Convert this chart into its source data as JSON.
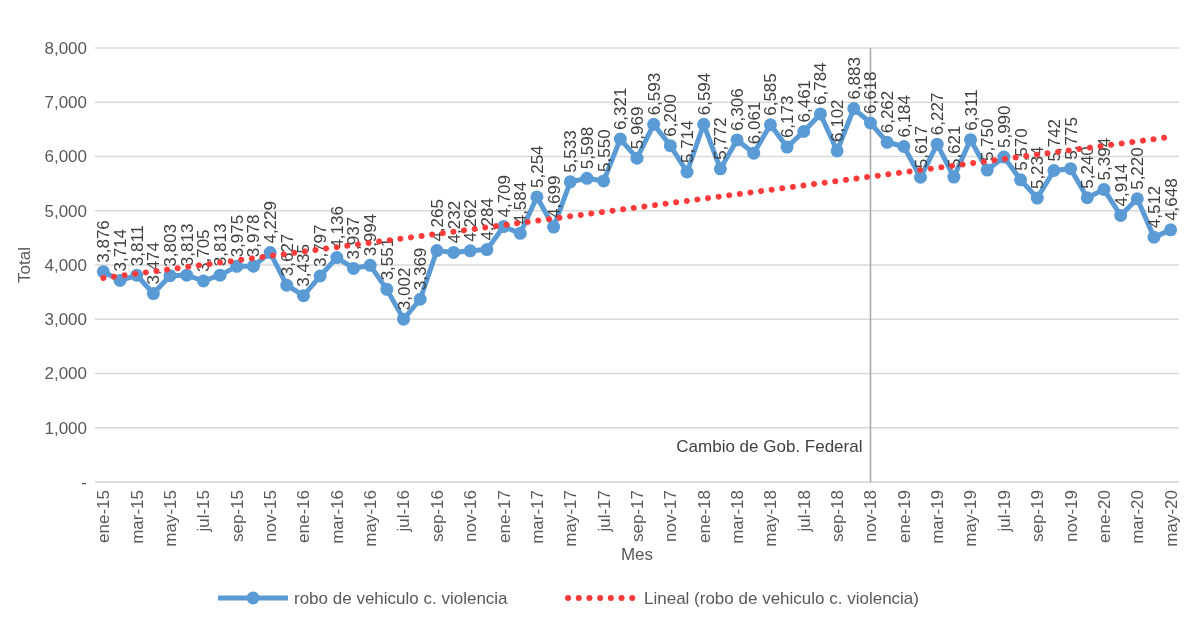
{
  "chart_data": {
    "type": "line",
    "xlabel": "Mes",
    "ylabel": "Total",
    "categories": [
      "ene-15",
      null,
      "mar-15",
      null,
      "may-15",
      null,
      "jul-15",
      null,
      "sep-15",
      null,
      "nov-15",
      null,
      "ene-16",
      null,
      "mar-16",
      null,
      "may-16",
      null,
      "jul-16",
      null,
      "sep-16",
      null,
      "nov-16",
      null,
      "ene-17",
      null,
      "mar-17",
      null,
      "may-17",
      null,
      "jul-17",
      null,
      "sep-17",
      null,
      "nov-17",
      null,
      "ene-18",
      null,
      "mar-18",
      null,
      "may-18",
      null,
      "jul-18",
      null,
      "sep-18",
      null,
      "nov-18",
      null,
      "ene-19",
      null,
      "mar-19",
      null,
      "may-19",
      null,
      "jul-19",
      null,
      "sep-19",
      null,
      "nov-19",
      null,
      "ene-20",
      null,
      "mar-20",
      null,
      "may-20"
    ],
    "series": [
      {
        "name": "robo de vehiculo c. violencia",
        "color": "#5b9bd5",
        "marker": "circle",
        "line_style": "solid",
        "value_labels": [
          "3,876",
          "3,714",
          "3,811",
          "3,474",
          "3,803",
          "3,813",
          "3,705",
          "3,813",
          "3,975",
          "3,978",
          "4,229",
          "3,627",
          "3,435",
          "3,797",
          "4,136",
          "3,937",
          "3,994",
          "3,551",
          "3,002",
          "3,369",
          "4,265",
          "4,232",
          "4,262",
          "4,284",
          "4,709",
          "4,584",
          "5,254",
          "4,699",
          "5,533",
          "5,598",
          "5,550",
          "6,321",
          "5,969",
          "6,593",
          "6,200",
          "5,714",
          "6,594",
          "5,772",
          "6,306",
          "6,061",
          "6,585",
          "6,173",
          "6,461",
          "6,784",
          "6,102",
          "6,883",
          "6,618",
          "6,262",
          "6,184",
          "5,617",
          "6,227",
          "5,621",
          "6,311",
          "5,750",
          "5,990",
          "5,570",
          "5,234",
          "5,742",
          "5,775",
          "5,240",
          "5,394",
          "4,914",
          "5,220",
          "4,512",
          "4,648"
        ],
        "values": [
          3876,
          3714,
          3811,
          3474,
          3803,
          3813,
          3705,
          3813,
          3975,
          3978,
          4229,
          3627,
          3435,
          3797,
          4136,
          3937,
          3994,
          3551,
          3002,
          3369,
          4265,
          4232,
          4262,
          4284,
          4709,
          4584,
          5254,
          4699,
          5533,
          5598,
          5550,
          6321,
          5969,
          6593,
          6200,
          5714,
          6594,
          5772,
          6306,
          6061,
          6585,
          6173,
          6461,
          6784,
          6102,
          6883,
          6618,
          6262,
          6184,
          5617,
          6227,
          5621,
          6311,
          5750,
          5990,
          5570,
          5234,
          5742,
          5775,
          5240,
          5394,
          4914,
          5220,
          4512,
          4648
        ]
      },
      {
        "name": "Lineal (robo de vehiculo c. violencia)",
        "type": "line",
        "color": "#ff3b3b",
        "marker": "none",
        "line_style": "dotted",
        "x": [
          "ene-15",
          "may-20"
        ],
        "values": [
          3760,
          6360
        ]
      }
    ],
    "ylim": [
      0,
      8000
    ],
    "yticks": [
      {
        "value": 0,
        "label": "-"
      },
      {
        "value": 1000,
        "label": "1,000"
      },
      {
        "value": 2000,
        "label": "2,000"
      },
      {
        "value": 3000,
        "label": "3,000"
      },
      {
        "value": 4000,
        "label": "4,000"
      },
      {
        "value": 5000,
        "label": "5,000"
      },
      {
        "value": 6000,
        "label": "6,000"
      },
      {
        "value": 7000,
        "label": "7,000"
      },
      {
        "value": 8000,
        "label": "8,000"
      }
    ],
    "grid": "y",
    "legend": "bottom",
    "ref_lines": [
      {
        "axis": "x",
        "value": "nov-18",
        "label": "Cambio de Gob. Federal",
        "color": "#a6a6a6"
      }
    ]
  }
}
